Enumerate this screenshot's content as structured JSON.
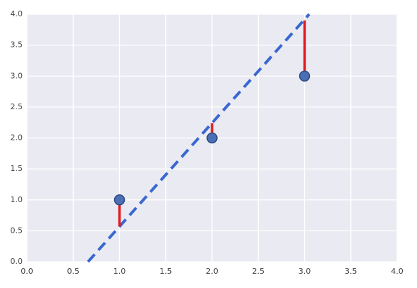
{
  "chart_data": {
    "type": "scatter",
    "x": [
      1.0,
      2.0,
      3.0
    ],
    "series": [
      {
        "color": "#4a6fb5",
        "values": [
          1.0,
          2.0,
          3.0
        ]
      }
    ],
    "fit": {
      "color": "#3a68d0",
      "x": [
        0.66,
        3.05
      ],
      "values": [
        0.0,
        4.0
      ]
    },
    "fitted_values": [
      0.57,
      2.24,
      3.9
    ],
    "residual_color": "#e01a22",
    "xlim": [
      0,
      4
    ],
    "ylim": [
      0,
      4
    ],
    "xticks": [
      {
        "value": 0,
        "label": "0.0"
      },
      {
        "value": 0.5,
        "label": "0.5"
      },
      {
        "value": 1,
        "label": "1.0"
      },
      {
        "value": 1.5,
        "label": "1.5"
      },
      {
        "value": 2,
        "label": "2.0"
      },
      {
        "value": 2.5,
        "label": "2.5"
      },
      {
        "value": 3,
        "label": "3.0"
      },
      {
        "value": 3.5,
        "label": "3.5"
      },
      {
        "value": 4,
        "label": "4.0"
      }
    ],
    "yticks": [
      {
        "value": 0,
        "label": "0.0"
      },
      {
        "value": 0.5,
        "label": "0.5"
      },
      {
        "value": 1,
        "label": "1.0"
      },
      {
        "value": 1.5,
        "label": "1.5"
      },
      {
        "value": 2,
        "label": "2.0"
      },
      {
        "value": 2.5,
        "label": "2.5"
      },
      {
        "value": 3,
        "label": "3.0"
      },
      {
        "value": 3.5,
        "label": "3.5"
      },
      {
        "value": 4,
        "label": "4.0"
      }
    ],
    "grid": true
  }
}
